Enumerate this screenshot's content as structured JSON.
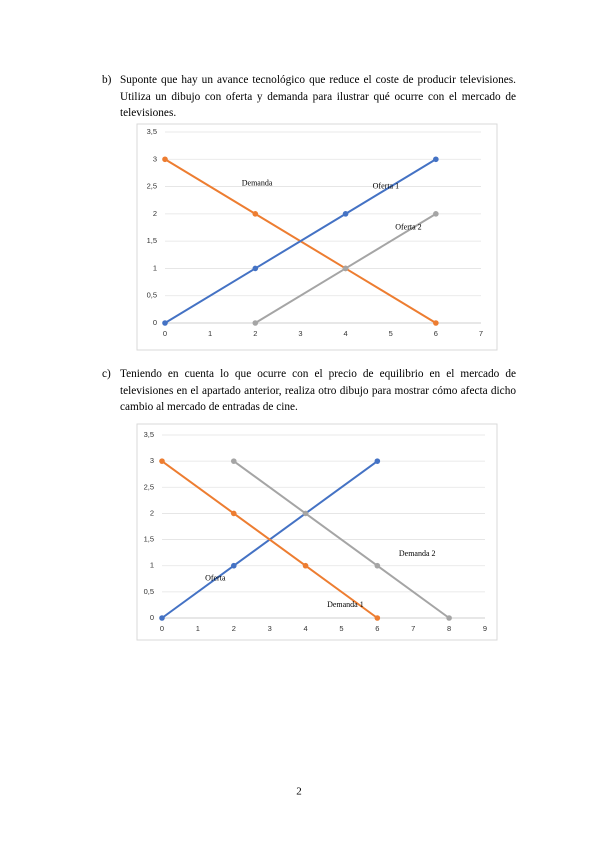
{
  "items": [
    {
      "marker": "b)",
      "text": "Suponte que hay un avance tecnológico que reduce el coste de producir televisiones. Utiliza un dibujo con oferta y demanda para ilustrar qué ocurre con el mercado de televisiones."
    },
    {
      "marker": "c)",
      "text": "Teniendo en cuenta lo que ocurre con el precio de equilibrio en el mercado de televisiones en el apartado anterior, realiza otro dibujo para mostrar cómo afecta dicho cambio al mercado de entradas de cine."
    }
  ],
  "page_number": "2",
  "chart_data": [
    {
      "type": "line",
      "xlim": [
        0,
        7
      ],
      "xticks": [
        0,
        1,
        2,
        3,
        4,
        5,
        6,
        7
      ],
      "ylim": [
        0,
        3.5
      ],
      "yticks": [
        0,
        {
          "value": 0.5,
          "label": "0,5"
        },
        1,
        {
          "value": 1.5,
          "label": "1,5"
        },
        2,
        {
          "value": 2.5,
          "label": "2,5"
        },
        3,
        {
          "value": 3.5,
          "label": "3,5"
        }
      ],
      "grid": true,
      "series": [
        {
          "name": "Demanda",
          "color": "#ed7d31",
          "x": [
            0,
            2,
            4,
            6
          ],
          "values": [
            3,
            2,
            1,
            0
          ]
        },
        {
          "name": "Oferta 1",
          "color": "#4472c4",
          "x": [
            0,
            2,
            4,
            6
          ],
          "values": [
            0,
            1,
            2,
            3
          ]
        },
        {
          "name": "Oferta 2",
          "color": "#a5a5a5",
          "x": [
            2,
            4,
            6
          ],
          "values": [
            0,
            1,
            2
          ]
        }
      ]
    },
    {
      "type": "line",
      "xlim": [
        0,
        9
      ],
      "xticks": [
        0,
        1,
        2,
        3,
        4,
        5,
        6,
        7,
        8,
        9
      ],
      "ylim": [
        0,
        3.5
      ],
      "yticks": [
        0,
        {
          "value": 0.5,
          "label": "0,5"
        },
        1,
        {
          "value": 1.5,
          "label": "1,5"
        },
        2,
        {
          "value": 2.5,
          "label": "2,5"
        },
        3,
        {
          "value": 3.5,
          "label": "3,5"
        }
      ],
      "grid": true,
      "series": [
        {
          "name": "Oferta",
          "color": "#4472c4",
          "x": [
            0,
            2,
            6
          ],
          "values": [
            0,
            1,
            3
          ]
        },
        {
          "name": "Demanda 1",
          "color": "#ed7d31",
          "x": [
            0,
            2,
            4,
            6
          ],
          "values": [
            3,
            2,
            1,
            0
          ]
        },
        {
          "name": "Demanda 2",
          "color": "#a5a5a5",
          "x": [
            2,
            4,
            6,
            8
          ],
          "values": [
            3,
            2,
            1,
            0
          ]
        }
      ]
    }
  ]
}
